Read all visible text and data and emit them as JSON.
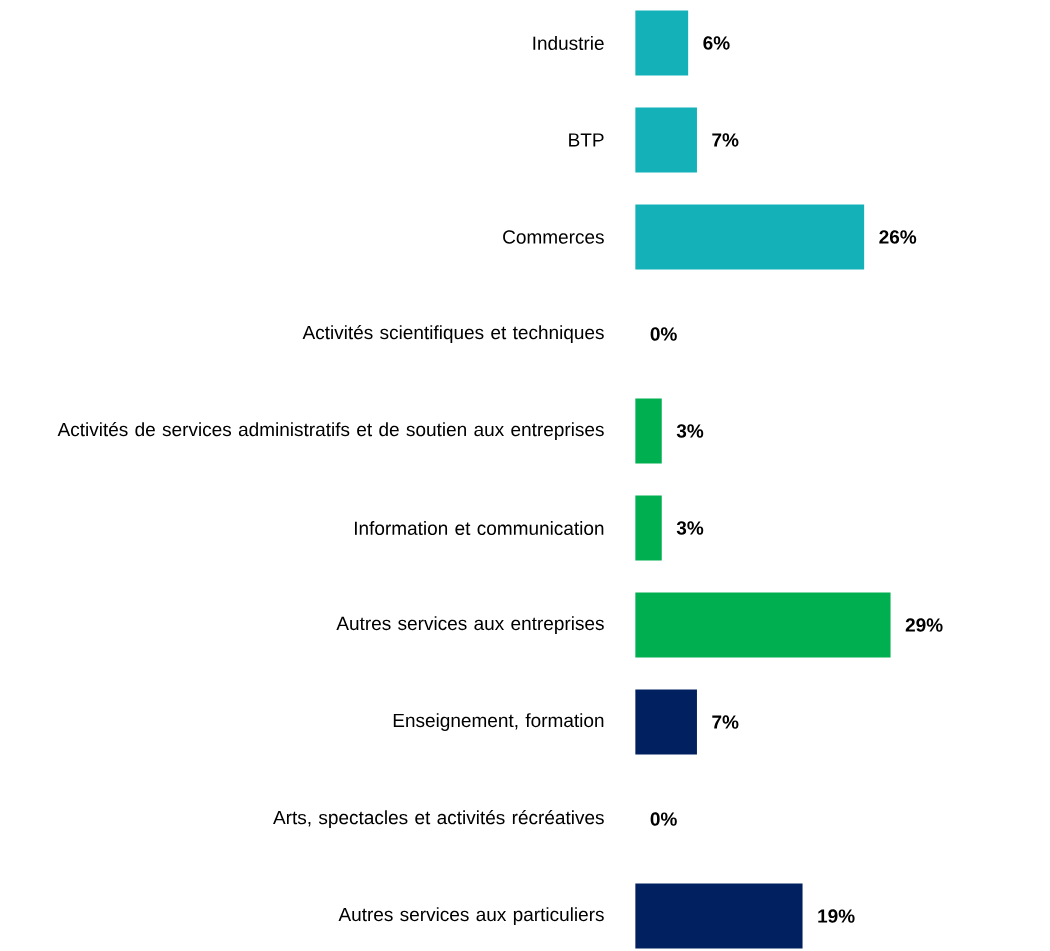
{
  "chart_data": {
    "type": "bar",
    "orientation": "horizontal",
    "tick_labels": "y",
    "categories": [
      "Industrie",
      "BTP",
      "Commerces",
      "Activités scientifiques et techniques",
      "Activités de services administratifs et de soutien aux entreprises",
      "Information et communication",
      "Autres services aux entreprises",
      "Enseignement, formation",
      "Arts, spectacles et activités récréatives",
      "Autres services aux particuliers"
    ],
    "values": [
      6,
      7,
      26,
      0,
      3,
      3,
      29,
      7,
      0,
      19
    ],
    "colors": [
      "#14b1b8",
      "#14b1b8",
      "#14b1b8",
      "#00b050",
      "#00b050",
      "#00b050",
      "#00b050",
      "#002060",
      "#002060",
      "#002060"
    ],
    "value_labels": [
      "6%",
      "7%",
      "26%",
      "0%",
      "3%",
      "3%",
      "29%",
      "7%",
      "0%",
      "19%"
    ]
  }
}
